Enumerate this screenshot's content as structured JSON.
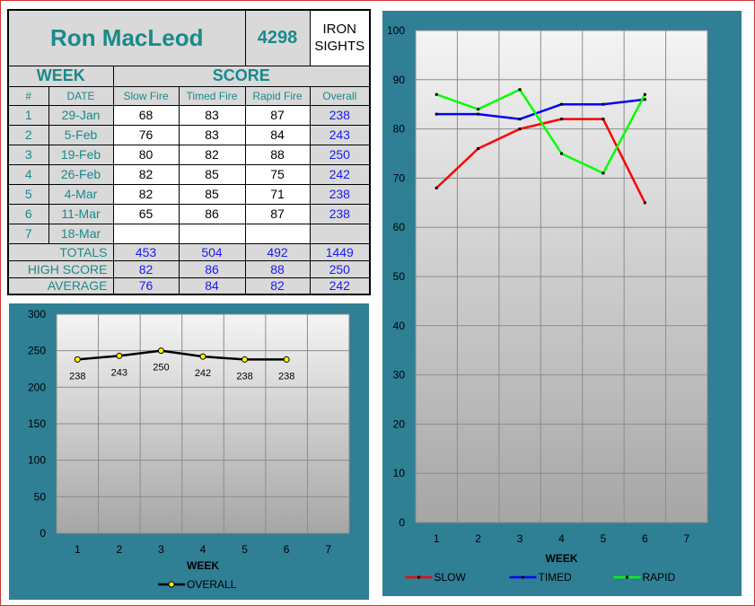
{
  "shooter": {
    "name": "Ron MacLeod",
    "id": "4298",
    "sights": "IRON SIGHTS"
  },
  "table": {
    "week_header": "WEEK",
    "score_header": "SCORE",
    "columns": [
      "#",
      "DATE",
      "Slow Fire",
      "Timed Fire",
      "Rapid Fire",
      "Overall"
    ],
    "rows": [
      {
        "num": "1",
        "date": "29-Jan",
        "slow": "68",
        "timed": "83",
        "rapid": "87",
        "overall": "238"
      },
      {
        "num": "2",
        "date": "5-Feb",
        "slow": "76",
        "timed": "83",
        "rapid": "84",
        "overall": "243"
      },
      {
        "num": "3",
        "date": "19-Feb",
        "slow": "80",
        "timed": "82",
        "rapid": "88",
        "overall": "250"
      },
      {
        "num": "4",
        "date": "26-Feb",
        "slow": "82",
        "timed": "85",
        "rapid": "75",
        "overall": "242"
      },
      {
        "num": "5",
        "date": "4-Mar",
        "slow": "82",
        "timed": "85",
        "rapid": "71",
        "overall": "238"
      },
      {
        "num": "6",
        "date": "11-Mar",
        "slow": "65",
        "timed": "86",
        "rapid": "87",
        "overall": "238"
      },
      {
        "num": "7",
        "date": "18-Mar",
        "slow": "",
        "timed": "",
        "rapid": "",
        "overall": ""
      }
    ],
    "totals": {
      "label": "TOTALS",
      "slow": "453",
      "timed": "504",
      "rapid": "492",
      "overall": "1449"
    },
    "high": {
      "label": "HIGH SCORE",
      "slow": "82",
      "timed": "86",
      "rapid": "88",
      "overall": "250"
    },
    "average": {
      "label": "AVERAGE",
      "slow": "76",
      "timed": "84",
      "rapid": "82",
      "overall": "242"
    }
  },
  "chart_data": [
    {
      "type": "line",
      "xlabel": "WEEK",
      "ylabel": "",
      "categories": [
        "1",
        "2",
        "3",
        "4",
        "5",
        "6",
        "7"
      ],
      "ylim": [
        0,
        300
      ],
      "yticks": [
        0,
        50,
        100,
        150,
        200,
        250,
        300
      ],
      "grid": true,
      "legend": "bottom",
      "series": [
        {
          "name": "OVERALL",
          "color": "#000000",
          "marker_color": "#ffff00",
          "values": [
            238,
            243,
            250,
            242,
            238,
            238,
            null
          ],
          "data_labels": true
        }
      ]
    },
    {
      "type": "line",
      "xlabel": "WEEK",
      "ylabel": "",
      "categories": [
        "1",
        "2",
        "3",
        "4",
        "5",
        "6",
        "7"
      ],
      "ylim": [
        0,
        100
      ],
      "yticks": [
        0,
        10,
        20,
        30,
        40,
        50,
        60,
        70,
        80,
        90,
        100
      ],
      "grid": true,
      "legend": "bottom",
      "series": [
        {
          "name": "SLOW",
          "color": "#ff0000",
          "values": [
            68,
            76,
            80,
            82,
            82,
            65,
            null
          ]
        },
        {
          "name": "TIMED",
          "color": "#0000ff",
          "values": [
            83,
            83,
            82,
            85,
            85,
            86,
            null
          ]
        },
        {
          "name": "RAPID",
          "color": "#00ff00",
          "values": [
            87,
            84,
            88,
            75,
            71,
            87,
            null
          ]
        }
      ]
    }
  ]
}
